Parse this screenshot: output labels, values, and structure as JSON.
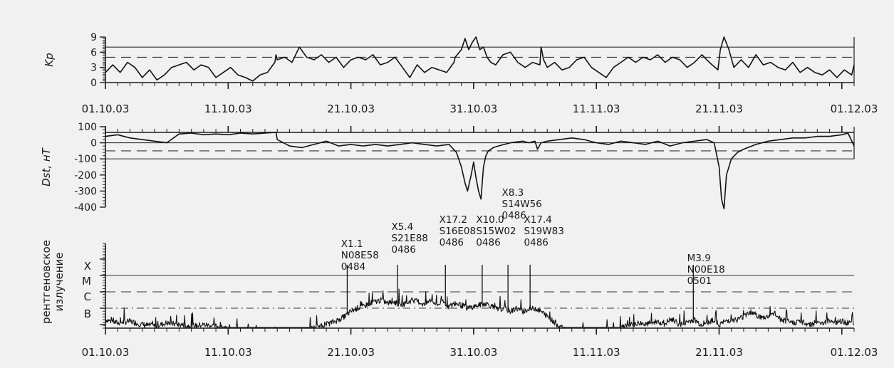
{
  "chart_data": [
    {
      "type": "line",
      "panel": "kp",
      "ylabel": "Kp",
      "ylim": [
        0,
        9
      ],
      "yticks": [
        "0",
        "3",
        "6",
        "9"
      ],
      "reference_lines": [
        {
          "value": 7,
          "style": "solid"
        },
        {
          "value": 5,
          "style": "dashed"
        }
      ],
      "x_tick_labels": [
        "01.10.03",
        "11.10.03",
        "21.10.03",
        "31.10.03",
        "11.11.03",
        "21.11.03",
        "01.12.03"
      ],
      "series": [
        {
          "day": [
            0,
            0.6,
            1.2,
            1.8,
            2.4,
            3.0,
            3.6,
            4.2,
            4.8,
            5.4,
            6.0,
            6.6,
            7.2,
            7.8,
            8.4,
            9.0,
            9.6,
            10.2,
            10.8,
            11.4,
            12.0,
            12.6,
            13.2,
            13.8,
            13.9,
            14.0,
            14.6,
            15.2,
            15.8,
            16.4,
            17.0,
            17.6,
            18.2,
            18.8,
            19.4,
            20.0,
            20.6,
            21.2,
            21.8,
            22.4,
            23.0,
            23.6,
            24.2,
            24.8,
            25.4,
            26.0,
            26.6,
            27.2,
            27.8,
            28.4,
            28.5,
            29.0,
            29.3,
            29.6,
            29.9,
            30.2,
            30.5,
            30.8,
            31.1,
            31.4,
            31.8,
            32.4,
            33.0,
            33.6,
            34.2,
            34.8,
            35.4,
            35.5,
            35.7,
            36.0,
            36.6,
            37.2,
            37.8,
            38.4,
            39.0,
            39.6,
            40.2,
            40.8,
            41.4,
            42.0,
            42.6,
            43.2,
            43.8,
            44.4,
            45.0,
            45.6,
            46.2,
            46.8,
            47.4,
            48.0,
            48.6,
            49.2,
            49.9,
            50.1,
            50.4,
            50.8,
            51.2,
            51.8,
            52.4,
            53.0,
            53.6,
            54.2,
            54.8,
            55.4,
            56.0,
            56.6,
            57.2,
            57.8,
            58.4,
            59.0,
            59.6,
            60.2,
            60.8,
            61.0
          ],
          "kp": [
            2.0,
            3.5,
            2.0,
            4.0,
            3.0,
            1.0,
            2.5,
            0.5,
            1.5,
            3.0,
            3.5,
            4.0,
            2.5,
            3.5,
            3.0,
            1.0,
            2.0,
            3.0,
            1.5,
            1.0,
            0.3,
            1.5,
            2.0,
            4.0,
            5.5,
            4.5,
            5.0,
            4.0,
            7.0,
            5.0,
            4.5,
            5.5,
            4.0,
            5.0,
            3.0,
            4.5,
            5.0,
            4.5,
            5.5,
            3.5,
            4.0,
            5.0,
            3.0,
            1.0,
            3.5,
            2.0,
            3.0,
            2.5,
            2.0,
            4.0,
            5.0,
            6.5,
            8.7,
            6.5,
            8.0,
            9.0,
            6.5,
            7.0,
            5.0,
            4.0,
            3.5,
            5.5,
            6.0,
            4.0,
            3.0,
            4.0,
            3.5,
            7.0,
            4.5,
            3.0,
            4.0,
            2.5,
            3.0,
            4.5,
            5.0,
            3.0,
            2.0,
            1.0,
            3.0,
            4.0,
            5.0,
            4.0,
            5.0,
            4.5,
            5.5,
            4.0,
            5.0,
            4.5,
            3.0,
            4.0,
            5.5,
            4.0,
            2.5,
            6.5,
            9.0,
            6.5,
            3.0,
            4.5,
            3.0,
            5.5,
            3.5,
            4.0,
            3.0,
            2.5,
            4.0,
            2.0,
            3.0,
            2.0,
            1.5,
            2.5,
            1.0,
            2.5,
            1.5,
            3.5
          ]
        }
      ]
    },
    {
      "type": "line",
      "panel": "dst",
      "ylabel": "Dst, нТ",
      "ylim": [
        -400,
        100
      ],
      "yticks": [
        "100",
        "0",
        "-100",
        "-200",
        "-300",
        "-400"
      ],
      "reference_lines": [
        {
          "value": -100,
          "style": "solid"
        },
        {
          "value": -50,
          "style": "dashed"
        }
      ],
      "series": [
        {
          "day": [
            0,
            1.0,
            2.0,
            3.0,
            4.0,
            5.0,
            6.0,
            7.0,
            8.0,
            9.0,
            10.0,
            11.0,
            12.0,
            13.0,
            13.9,
            14.0,
            14.5,
            15.0,
            16.0,
            17.0,
            18.0,
            19.0,
            20.0,
            21.0,
            22.0,
            23.0,
            24.0,
            25.0,
            26.0,
            27.0,
            28.0,
            28.6,
            29.0,
            29.3,
            29.5,
            29.8,
            30.0,
            30.2,
            30.4,
            30.6,
            30.8,
            31.0,
            31.2,
            31.6,
            32.0,
            33.0,
            34.0,
            34.5,
            35.0,
            35.2,
            35.5,
            36.0,
            37.0,
            38.0,
            39.0,
            40.0,
            41.0,
            42.0,
            43.0,
            44.0,
            45.0,
            46.0,
            47.0,
            48.0,
            49.0,
            49.6,
            50.0,
            50.2,
            50.4,
            50.6,
            51.0,
            51.5,
            52.0,
            53.0,
            54.0,
            55.0,
            56.0,
            57.0,
            58.0,
            59.0,
            60.0,
            60.5,
            61.0
          ],
          "dst": [
            40,
            50,
            30,
            20,
            10,
            0,
            55,
            60,
            50,
            55,
            50,
            60,
            55,
            60,
            65,
            20,
            0,
            -20,
            -30,
            -10,
            10,
            -20,
            -10,
            -20,
            -10,
            -20,
            -10,
            0,
            -10,
            -20,
            -10,
            -60,
            -150,
            -250,
            -300,
            -200,
            -120,
            -220,
            -300,
            -350,
            -150,
            -80,
            -50,
            -30,
            -20,
            0,
            10,
            0,
            10,
            -40,
            0,
            10,
            20,
            30,
            20,
            0,
            -10,
            10,
            0,
            -10,
            10,
            -20,
            0,
            10,
            20,
            0,
            -150,
            -350,
            -410,
            -200,
            -100,
            -60,
            -40,
            -10,
            10,
            20,
            30,
            30,
            40,
            40,
            50,
            60,
            -20
          ]
        }
      ]
    },
    {
      "type": "line",
      "panel": "xray",
      "ylabel_line1": "рентгеновское",
      "ylabel_line2": "излучение",
      "class_labels": [
        "X",
        "M",
        "C",
        "B"
      ],
      "reference_lines": [
        {
          "value": "X",
          "style": "solid"
        },
        {
          "value": "C",
          "style": "dashed"
        },
        {
          "value": "B",
          "style": "dashdot"
        }
      ],
      "series": [
        {
          "day": [
            0,
            1,
            2,
            3,
            4,
            5,
            6,
            7,
            8,
            9,
            10,
            11,
            12,
            13,
            14,
            15,
            16,
            17,
            18,
            19,
            19.5,
            20,
            20.5,
            21,
            21.5,
            22,
            22.5,
            23,
            23.5,
            24,
            24.5,
            25,
            25.5,
            26,
            26.5,
            27,
            27.5,
            28,
            28.5,
            29,
            29.5,
            30,
            30.5,
            31,
            31.5,
            32,
            32.5,
            33,
            33.5,
            34,
            34.5,
            35,
            35.5,
            36,
            36.5,
            37,
            37.5,
            38,
            38.5,
            39,
            39.5,
            40,
            40.5,
            41,
            41.5,
            42,
            42.5,
            43,
            43.5,
            44,
            44.5,
            45,
            45.5,
            46,
            46.5,
            47,
            47.5,
            48,
            48.5,
            49,
            49.5,
            50,
            50.5,
            51,
            51.5,
            52,
            52.5,
            53,
            53.5,
            54,
            54.5,
            55,
            55.5,
            56,
            56.5,
            57,
            57.5,
            58,
            58.5,
            59,
            59.5,
            60,
            60.5,
            61
          ],
          "level": [
            1.3,
            1.1,
            1.2,
            1.0,
            0.9,
            1.1,
            1.0,
            0.9,
            1.0,
            0.9,
            0.7,
            0.6,
            0.6,
            0.5,
            0.4,
            0.3,
            0.6,
            0.8,
            1.0,
            1.3,
            1.5,
            1.8,
            2.0,
            2.1,
            2.3,
            2.4,
            2.5,
            2.3,
            2.4,
            2.2,
            2.3,
            2.5,
            2.4,
            2.2,
            2.5,
            2.2,
            2.4,
            2.1,
            2.3,
            2.2,
            2.0,
            2.1,
            2.2,
            2.3,
            2.1,
            1.9,
            2.0,
            1.8,
            2.0,
            1.8,
            1.9,
            2.0,
            1.8,
            1.5,
            1.2,
            0.9,
            0.6,
            0.5,
            0.4,
            0.3,
            0.3,
            0.4,
            0.5,
            0.5,
            0.7,
            0.8,
            0.9,
            1.0,
            1.1,
            1.0,
            1.1,
            1.2,
            1.0,
            1.3,
            1.1,
            1.0,
            1.2,
            1.3,
            1.0,
            1.1,
            1.3,
            1.0,
            1.2,
            1.3,
            1.3,
            1.5,
            1.8,
            1.6,
            1.4,
            1.5,
            1.7,
            1.3,
            1.2,
            1.1,
            1.2,
            1.1,
            1.0,
            1.2,
            1.1,
            1.3,
            1.1,
            1.2,
            1.1,
            1.0,
            1.1,
            1.0
          ]
        }
      ],
      "annotations": [
        {
          "day": 19.2,
          "lines": [
            "X1.1",
            "N08E58",
            "0484"
          ]
        },
        {
          "day": 23.3,
          "lines": [
            "X5.4",
            "S21E88",
            "0486"
          ]
        },
        {
          "day": 27.2,
          "lines": [
            "X17.2",
            "S16E08",
            "0486"
          ]
        },
        {
          "day": 30.2,
          "lines": [
            "X10.0",
            "S15W02",
            "0486"
          ]
        },
        {
          "day": 32.3,
          "lines": [
            "X8.3",
            "S14W56",
            "0486"
          ]
        },
        {
          "day": 34.1,
          "lines": [
            "X17.4",
            "S19W83",
            "0486"
          ]
        },
        {
          "day": 47.4,
          "lines": [
            "M3.9",
            "N00E18",
            "0501"
          ]
        }
      ]
    }
  ]
}
